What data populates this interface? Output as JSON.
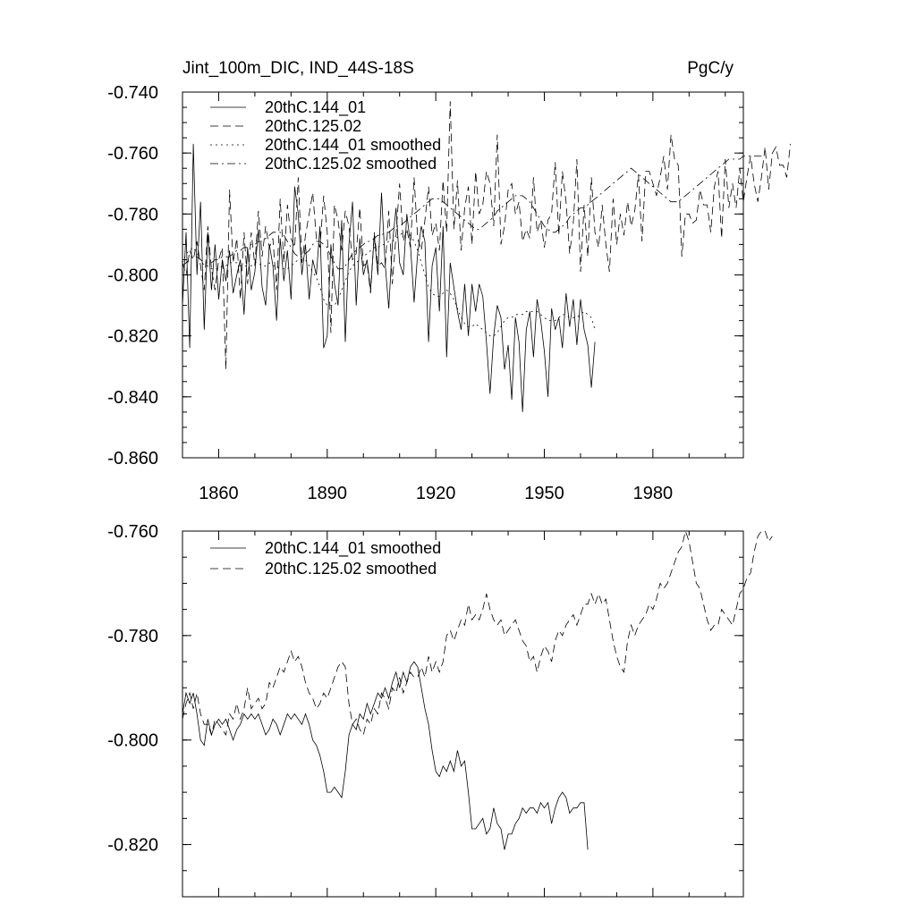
{
  "chart_data": [
    {
      "type": "line",
      "title": "Jint_100m_DIC, IND_44S-18S",
      "units": "PgC/y",
      "xlim": [
        1850,
        2005
      ],
      "ylim": [
        -0.86,
        -0.74
      ],
      "x_ticks": [
        1860,
        1890,
        1920,
        1950,
        1980
      ],
      "y_ticks": [
        -0.86,
        -0.84,
        -0.82,
        -0.8,
        -0.78,
        -0.76,
        -0.74
      ],
      "y_tick_labels": [
        "-0.860",
        "-0.840",
        "-0.820",
        "-0.800",
        "-0.780",
        "-0.760",
        "-0.740"
      ],
      "legend_position": "top-left",
      "series": [
        {
          "name": "20thC.144_01",
          "style": "solid",
          "x_start": 1850,
          "values": [
            -0.81,
            -0.786,
            -0.824,
            -0.757,
            -0.8,
            -0.776,
            -0.818,
            -0.786,
            -0.805,
            -0.79,
            -0.808,
            -0.795,
            -0.802,
            -0.792,
            -0.806,
            -0.8,
            -0.795,
            -0.813,
            -0.791,
            -0.805,
            -0.799,
            -0.785,
            -0.804,
            -0.81,
            -0.79,
            -0.797,
            -0.815,
            -0.788,
            -0.802,
            -0.792,
            -0.808,
            -0.771,
            -0.78,
            -0.8,
            -0.79,
            -0.808,
            -0.795,
            -0.8,
            -0.784,
            -0.824,
            -0.82,
            -0.79,
            -0.803,
            -0.81,
            -0.782,
            -0.822,
            -0.79,
            -0.776,
            -0.81,
            -0.788,
            -0.8,
            -0.795,
            -0.805,
            -0.787,
            -0.8,
            -0.773,
            -0.796,
            -0.811,
            -0.79,
            -0.778,
            -0.796,
            -0.8,
            -0.78,
            -0.79,
            -0.809,
            -0.793,
            -0.784,
            -0.789,
            -0.822,
            -0.797,
            -0.791,
            -0.812,
            -0.784,
            -0.827,
            -0.796,
            -0.804,
            -0.812,
            -0.818,
            -0.803,
            -0.82,
            -0.803,
            -0.812,
            -0.803,
            -0.807,
            -0.822,
            -0.839,
            -0.82,
            -0.81,
            -0.814,
            -0.831,
            -0.823,
            -0.841,
            -0.814,
            -0.822,
            -0.845,
            -0.818,
            -0.812,
            -0.827,
            -0.808,
            -0.815,
            -0.825,
            -0.84,
            -0.811,
            -0.818,
            -0.814,
            -0.824,
            -0.806,
            -0.817,
            -0.808,
            -0.823,
            -0.808,
            -0.818,
            -0.823,
            -0.837,
            -0.822
          ]
        },
        {
          "name": "20thC.125.02",
          "style": "dashed",
          "x_start": 1850,
          "values": [
            -0.796,
            -0.8,
            -0.792,
            -0.795,
            -0.789,
            -0.797,
            -0.805,
            -0.784,
            -0.798,
            -0.805,
            -0.795,
            -0.791,
            -0.831,
            -0.772,
            -0.796,
            -0.788,
            -0.808,
            -0.786,
            -0.803,
            -0.786,
            -0.797,
            -0.779,
            -0.794,
            -0.784,
            -0.791,
            -0.788,
            -0.805,
            -0.775,
            -0.796,
            -0.777,
            -0.788,
            -0.791,
            -0.768,
            -0.796,
            -0.787,
            -0.78,
            -0.773,
            -0.788,
            -0.791,
            -0.774,
            -0.786,
            -0.819,
            -0.777,
            -0.782,
            -0.792,
            -0.779,
            -0.784,
            -0.795,
            -0.793,
            -0.778,
            -0.797,
            -0.796,
            -0.806,
            -0.786,
            -0.797,
            -0.796,
            -0.798,
            -0.779,
            -0.803,
            -0.787,
            -0.77,
            -0.789,
            -0.785,
            -0.791,
            -0.768,
            -0.788,
            -0.792,
            -0.782,
            -0.771,
            -0.787,
            -0.783,
            -0.792,
            -0.769,
            -0.786,
            -0.743,
            -0.785,
            -0.769,
            -0.792,
            -0.778,
            -0.771,
            -0.79,
            -0.766,
            -0.78,
            -0.777,
            -0.766,
            -0.77,
            -0.784,
            -0.754,
            -0.79,
            -0.784,
            -0.772,
            -0.77,
            -0.78,
            -0.776,
            -0.789,
            -0.785,
            -0.788,
            -0.768,
            -0.786,
            -0.782,
            -0.791,
            -0.782,
            -0.78,
            -0.763,
            -0.787,
            -0.766,
            -0.776,
            -0.793,
            -0.783,
            -0.762,
            -0.799,
            -0.777,
            -0.794,
            -0.768,
            -0.786,
            -0.791,
            -0.777,
            -0.79,
            -0.799,
            -0.775,
            -0.79,
            -0.78,
            -0.787,
            -0.776,
            -0.784,
            -0.779,
            -0.767,
            -0.789,
            -0.766,
            -0.766,
            -0.77,
            -0.774,
            -0.768,
            -0.761,
            -0.772,
            -0.754,
            -0.762,
            -0.764,
            -0.794,
            -0.78,
            -0.78,
            -0.783,
            -0.782,
            -0.772,
            -0.777,
            -0.777,
            -0.786,
            -0.771,
            -0.766,
            -0.788,
            -0.762,
            -0.778,
            -0.77,
            -0.778,
            -0.765,
            -0.776,
            -0.768,
            -0.761,
            -0.77,
            -0.776,
            -0.768,
            -0.758,
            -0.772,
            -0.76,
            -0.758,
            -0.764,
            -0.764,
            -0.768,
            -0.757
          ]
        },
        {
          "name": "20thC.144_01 smoothed",
          "style": "dotted",
          "x_start": 1850,
          "values": [
            -0.796,
            -0.793,
            -0.792,
            -0.791,
            -0.793,
            -0.795,
            -0.797,
            -0.797,
            -0.798,
            -0.798,
            -0.798,
            -0.797,
            -0.797,
            -0.796,
            -0.796,
            -0.796,
            -0.797,
            -0.797,
            -0.797,
            -0.797,
            -0.796,
            -0.796,
            -0.797,
            -0.797,
            -0.796,
            -0.797,
            -0.797,
            -0.798,
            -0.798,
            -0.798,
            -0.797,
            -0.796,
            -0.795,
            -0.795,
            -0.795,
            -0.797,
            -0.799,
            -0.801,
            -0.804,
            -0.808,
            -0.81,
            -0.81,
            -0.81,
            -0.808,
            -0.805,
            -0.802,
            -0.799,
            -0.797,
            -0.796,
            -0.795,
            -0.794,
            -0.793,
            -0.792,
            -0.791,
            -0.791,
            -0.79,
            -0.79,
            -0.789,
            -0.789,
            -0.788,
            -0.787,
            -0.786,
            -0.786,
            -0.787,
            -0.789,
            -0.792,
            -0.796,
            -0.8,
            -0.804,
            -0.806,
            -0.807,
            -0.807,
            -0.806,
            -0.805,
            -0.806,
            -0.808,
            -0.811,
            -0.814,
            -0.816,
            -0.817,
            -0.817,
            -0.816,
            -0.817,
            -0.818,
            -0.819,
            -0.82,
            -0.82,
            -0.819,
            -0.817,
            -0.815,
            -0.814,
            -0.814,
            -0.813,
            -0.813,
            -0.813,
            -0.812,
            -0.812,
            -0.812,
            -0.812,
            -0.813,
            -0.814,
            -0.815,
            -0.815,
            -0.815,
            -0.814,
            -0.813,
            -0.813,
            -0.814,
            -0.814,
            -0.814,
            -0.813,
            -0.812,
            -0.813,
            -0.814,
            -0.818
          ]
        },
        {
          "name": "20thC.125.02 smoothed",
          "style": "dashdot",
          "x_start": 1850,
          "values": [
            -0.797,
            -0.796,
            -0.795,
            -0.794,
            -0.794,
            -0.795,
            -0.796,
            -0.796,
            -0.796,
            -0.795,
            -0.795,
            -0.794,
            -0.794,
            -0.794,
            -0.793,
            -0.792,
            -0.792,
            -0.791,
            -0.791,
            -0.79,
            -0.79,
            -0.789,
            -0.789,
            -0.788,
            -0.787,
            -0.786,
            -0.786,
            -0.786,
            -0.787,
            -0.789,
            -0.791,
            -0.793,
            -0.794,
            -0.794,
            -0.793,
            -0.792,
            -0.79,
            -0.789,
            -0.789,
            -0.79,
            -0.791,
            -0.794,
            -0.796,
            -0.798,
            -0.798,
            -0.797,
            -0.795,
            -0.793,
            -0.792,
            -0.791,
            -0.79,
            -0.789,
            -0.789,
            -0.788,
            -0.787,
            -0.787,
            -0.786,
            -0.786,
            -0.785,
            -0.784,
            -0.784,
            -0.783,
            -0.782,
            -0.781,
            -0.78,
            -0.779,
            -0.778,
            -0.777,
            -0.776,
            -0.775,
            -0.775,
            -0.775,
            -0.776,
            -0.777,
            -0.778,
            -0.779,
            -0.78,
            -0.781,
            -0.782,
            -0.783,
            -0.784,
            -0.785,
            -0.785,
            -0.784,
            -0.783,
            -0.782,
            -0.781,
            -0.779,
            -0.778,
            -0.777,
            -0.776,
            -0.775,
            -0.774,
            -0.774,
            -0.774,
            -0.775,
            -0.776,
            -0.778,
            -0.78,
            -0.782,
            -0.784,
            -0.785,
            -0.786,
            -0.786,
            -0.785,
            -0.784,
            -0.783,
            -0.781,
            -0.78,
            -0.779,
            -0.778,
            -0.778,
            -0.777,
            -0.776,
            -0.775,
            -0.774,
            -0.773,
            -0.772,
            -0.771,
            -0.77,
            -0.769,
            -0.768,
            -0.767,
            -0.766,
            -0.765,
            -0.766,
            -0.767,
            -0.768,
            -0.769,
            -0.77,
            -0.771,
            -0.772,
            -0.773,
            -0.774,
            -0.775,
            -0.776,
            -0.776,
            -0.776,
            -0.775,
            -0.774,
            -0.773,
            -0.772,
            -0.771,
            -0.77,
            -0.769,
            -0.768,
            -0.767,
            -0.766,
            -0.765,
            -0.764,
            -0.763,
            -0.762,
            -0.762,
            -0.762,
            -0.762,
            -0.761,
            -0.761,
            -0.761,
            -0.761,
            -0.761,
            -0.761
          ]
        }
      ]
    },
    {
      "type": "line",
      "xlim": [
        1850,
        2005
      ],
      "ylim": [
        -0.83,
        -0.76
      ],
      "y_ticks": [
        -0.82,
        -0.8,
        -0.78,
        -0.76
      ],
      "y_tick_labels": [
        "-0.820",
        "-0.800",
        "-0.780",
        "-0.760"
      ],
      "x_ticks": [
        1860,
        1890,
        1920,
        1950,
        1980
      ],
      "x_tick_labels_shown": false,
      "legend_position": "top-left",
      "series": [
        {
          "name": "20thC.144_01 smoothed",
          "style": "solid",
          "x_start": 1850,
          "values": [
            -0.795,
            -0.791,
            -0.793,
            -0.791,
            -0.795,
            -0.8,
            -0.801,
            -0.796,
            -0.799,
            -0.797,
            -0.796,
            -0.797,
            -0.796,
            -0.798,
            -0.8,
            -0.798,
            -0.797,
            -0.795,
            -0.796,
            -0.795,
            -0.796,
            -0.795,
            -0.797,
            -0.799,
            -0.798,
            -0.796,
            -0.797,
            -0.799,
            -0.797,
            -0.795,
            -0.796,
            -0.795,
            -0.796,
            -0.797,
            -0.795,
            -0.797,
            -0.8,
            -0.801,
            -0.803,
            -0.806,
            -0.81,
            -0.81,
            -0.809,
            -0.81,
            -0.811,
            -0.806,
            -0.799,
            -0.797,
            -0.798,
            -0.795,
            -0.796,
            -0.793,
            -0.795,
            -0.793,
            -0.791,
            -0.792,
            -0.79,
            -0.792,
            -0.789,
            -0.787,
            -0.79,
            -0.787,
            -0.789,
            -0.786,
            -0.785,
            -0.786,
            -0.79,
            -0.794,
            -0.797,
            -0.802,
            -0.806,
            -0.807,
            -0.805,
            -0.806,
            -0.804,
            -0.806,
            -0.802,
            -0.805,
            -0.804,
            -0.81,
            -0.817,
            -0.817,
            -0.816,
            -0.815,
            -0.818,
            -0.817,
            -0.813,
            -0.816,
            -0.817,
            -0.821,
            -0.818,
            -0.818,
            -0.816,
            -0.815,
            -0.813,
            -0.814,
            -0.813,
            -0.813,
            -0.814,
            -0.812,
            -0.813,
            -0.812,
            -0.816,
            -0.813,
            -0.811,
            -0.81,
            -0.811,
            -0.814,
            -0.813,
            -0.813,
            -0.812,
            -0.812,
            -0.821
          ]
        },
        {
          "name": "20thC.125.02 smoothed",
          "style": "dashed",
          "x_start": 1850,
          "values": [
            -0.796,
            -0.793,
            -0.791,
            -0.794,
            -0.791,
            -0.795,
            -0.797,
            -0.797,
            -0.799,
            -0.796,
            -0.797,
            -0.798,
            -0.799,
            -0.795,
            -0.796,
            -0.793,
            -0.796,
            -0.794,
            -0.79,
            -0.794,
            -0.793,
            -0.792,
            -0.794,
            -0.793,
            -0.789,
            -0.79,
            -0.788,
            -0.786,
            -0.787,
            -0.785,
            -0.783,
            -0.785,
            -0.784,
            -0.786,
            -0.789,
            -0.791,
            -0.792,
            -0.794,
            -0.793,
            -0.791,
            -0.792,
            -0.79,
            -0.788,
            -0.786,
            -0.785,
            -0.786,
            -0.793,
            -0.797,
            -0.796,
            -0.798,
            -0.799,
            -0.796,
            -0.797,
            -0.794,
            -0.795,
            -0.791,
            -0.792,
            -0.794,
            -0.79,
            -0.791,
            -0.788,
            -0.791,
            -0.789,
            -0.787,
            -0.788,
            -0.788,
            -0.786,
            -0.788,
            -0.784,
            -0.787,
            -0.785,
            -0.787,
            -0.785,
            -0.78,
            -0.779,
            -0.781,
            -0.779,
            -0.777,
            -0.778,
            -0.774,
            -0.777,
            -0.776,
            -0.777,
            -0.775,
            -0.772,
            -0.775,
            -0.777,
            -0.778,
            -0.777,
            -0.78,
            -0.779,
            -0.778,
            -0.777,
            -0.779,
            -0.781,
            -0.782,
            -0.785,
            -0.784,
            -0.787,
            -0.784,
            -0.782,
            -0.783,
            -0.785,
            -0.781,
            -0.779,
            -0.78,
            -0.778,
            -0.777,
            -0.776,
            -0.778,
            -0.776,
            -0.774,
            -0.774,
            -0.772,
            -0.774,
            -0.772,
            -0.774,
            -0.773,
            -0.777,
            -0.781,
            -0.784,
            -0.786,
            -0.787,
            -0.781,
            -0.778,
            -0.78,
            -0.778,
            -0.777,
            -0.776,
            -0.774,
            -0.775,
            -0.773,
            -0.77,
            -0.771,
            -0.77,
            -0.768,
            -0.766,
            -0.764,
            -0.763,
            -0.76,
            -0.762,
            -0.766,
            -0.77,
            -0.771,
            -0.774,
            -0.777,
            -0.779,
            -0.778,
            -0.778,
            -0.775,
            -0.776,
            -0.777,
            -0.778,
            -0.775,
            -0.772,
            -0.771,
            -0.769,
            -0.768,
            -0.764,
            -0.761,
            -0.76,
            -0.76,
            -0.762,
            -0.761
          ]
        }
      ]
    }
  ]
}
